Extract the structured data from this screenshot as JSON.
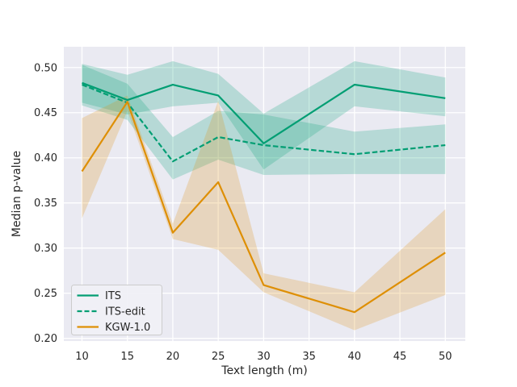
{
  "chart_data": {
    "type": "line",
    "title": "",
    "xlabel": "Text length (m)",
    "ylabel": "Median p-value",
    "x": [
      10,
      15,
      20,
      25,
      30,
      40,
      50
    ],
    "series": [
      {
        "name": "ITS",
        "color": "#029e73",
        "dash": "solid",
        "values": [
          0.483,
          0.464,
          0.481,
          0.469,
          0.416,
          0.481,
          0.466
        ],
        "band_upper": [
          0.504,
          0.492,
          0.507,
          0.493,
          0.449,
          0.507,
          0.489
        ],
        "band_lower": [
          0.461,
          0.448,
          0.457,
          0.461,
          0.387,
          0.457,
          0.446
        ]
      },
      {
        "name": "ITS-edit",
        "color": "#029e73",
        "dash": "dashed",
        "values": [
          0.481,
          0.461,
          0.396,
          0.423,
          0.414,
          0.404,
          0.414
        ],
        "band_upper": [
          0.503,
          0.482,
          0.423,
          0.452,
          0.448,
          0.429,
          0.437
        ],
        "band_lower": [
          0.458,
          0.442,
          0.376,
          0.398,
          0.381,
          0.382,
          0.382
        ]
      },
      {
        "name": "KGW-1.0",
        "color": "#de8f05",
        "dash": "solid",
        "values": [
          0.385,
          0.462,
          0.317,
          0.373,
          0.259,
          0.229,
          0.295
        ],
        "band_upper": [
          0.444,
          0.469,
          0.327,
          0.463,
          0.272,
          0.251,
          0.343
        ],
        "band_lower": [
          0.333,
          0.452,
          0.31,
          0.298,
          0.251,
          0.209,
          0.248
        ]
      }
    ],
    "xtick_values": [
      10,
      15,
      20,
      25,
      30,
      35,
      40,
      45,
      50
    ],
    "xtick_labels": [
      "10",
      "15",
      "20",
      "25",
      "30",
      "35",
      "40",
      "45",
      "50"
    ],
    "ytick_values": [
      0.2,
      0.25,
      0.3,
      0.35,
      0.4,
      0.45,
      0.5
    ],
    "ytick_labels": [
      "0.20",
      "0.25",
      "0.30",
      "0.35",
      "0.40",
      "0.45",
      "0.50"
    ],
    "xlim": [
      8,
      52.2
    ],
    "ylim": [
      0.197,
      0.523
    ],
    "grid": true,
    "legend_position": "lower left",
    "legend_entries": [
      "ITS",
      "ITS-edit",
      "KGW-1.0"
    ],
    "band_alpha": 0.22,
    "colors": {
      "figure_bg": "#ffffff",
      "axes_bg": "#eaeaf2",
      "grid": "#ffffff",
      "text": "#262626",
      "legend_bg": "#f0f0f6",
      "legend_border": "#cccccc"
    }
  }
}
